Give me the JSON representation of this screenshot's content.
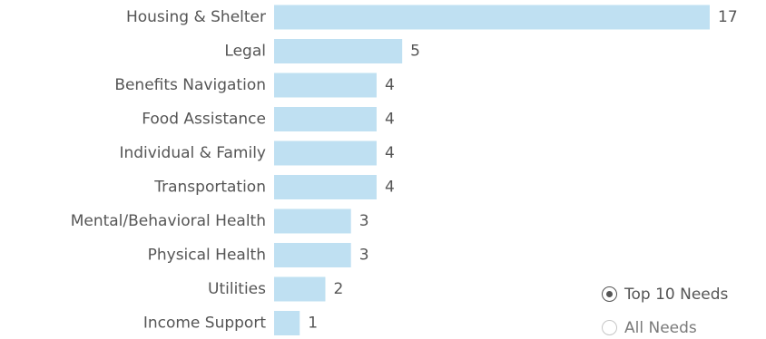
{
  "chart_data": {
    "type": "bar",
    "orientation": "horizontal",
    "categories": [
      "Housing & Shelter",
      "Legal",
      "Benefits Navigation",
      "Food Assistance",
      "Individual & Family",
      "Transportation",
      "Mental/Behavioral Health",
      "Physical Health",
      "Utilities",
      "Income Support"
    ],
    "values": [
      17,
      5,
      4,
      4,
      4,
      4,
      3,
      3,
      2,
      1
    ],
    "data_labels": [
      "17",
      "5",
      "4",
      "4",
      "4",
      "4",
      "3",
      "3",
      "2",
      "1"
    ],
    "xlim": [
      0,
      17
    ],
    "grid": false,
    "legend": "none",
    "bar_color": "#bfe0f2",
    "label_color": "#555555"
  },
  "filter": {
    "options": [
      {
        "label": "Top 10 Needs",
        "selected": true
      },
      {
        "label": "All Needs",
        "selected": false
      }
    ]
  }
}
